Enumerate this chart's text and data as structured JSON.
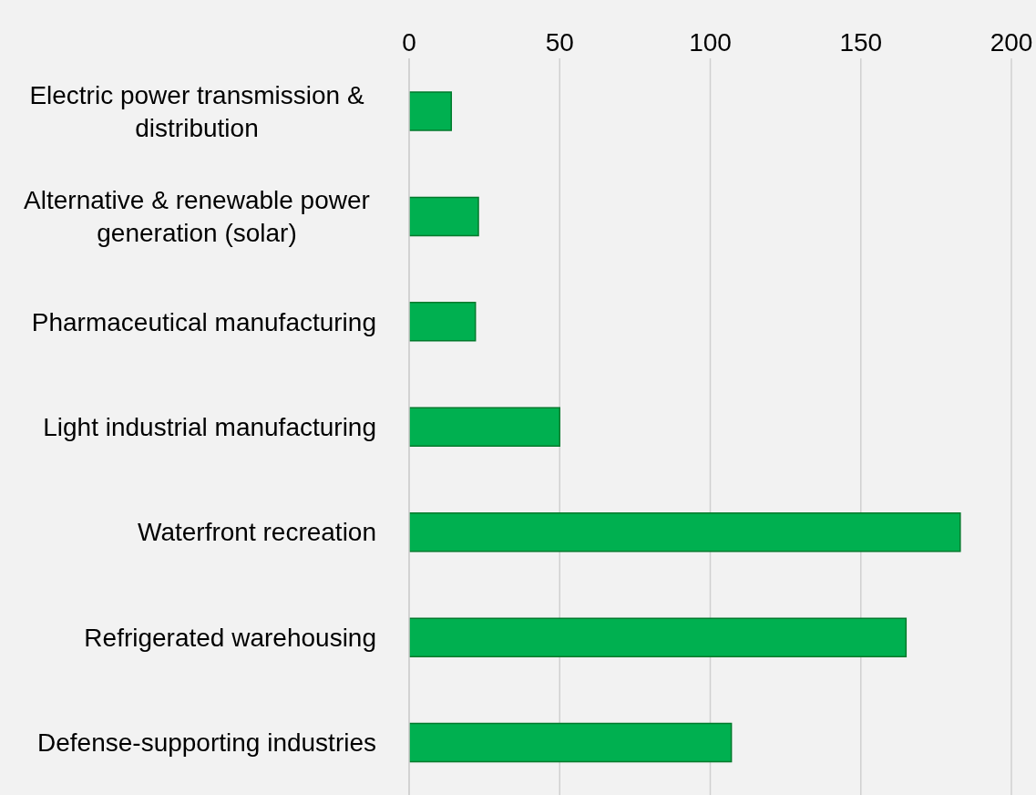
{
  "chart_data": {
    "type": "bar",
    "orientation": "horizontal",
    "categories": [
      "Electric power transmission & distribution",
      "Alternative & renewable power generation (solar)",
      "Pharmaceutical manufacturing",
      "Light industrial manufacturing",
      "Waterfront recreation",
      "Refrigerated warehousing",
      "Defense-supporting industries"
    ],
    "values": [
      14,
      23,
      22,
      50,
      183,
      165,
      107
    ],
    "color": "#00b050",
    "xlim": [
      0,
      200
    ],
    "xticks": [
      0,
      50,
      100,
      150,
      200
    ],
    "grid": "x"
  }
}
